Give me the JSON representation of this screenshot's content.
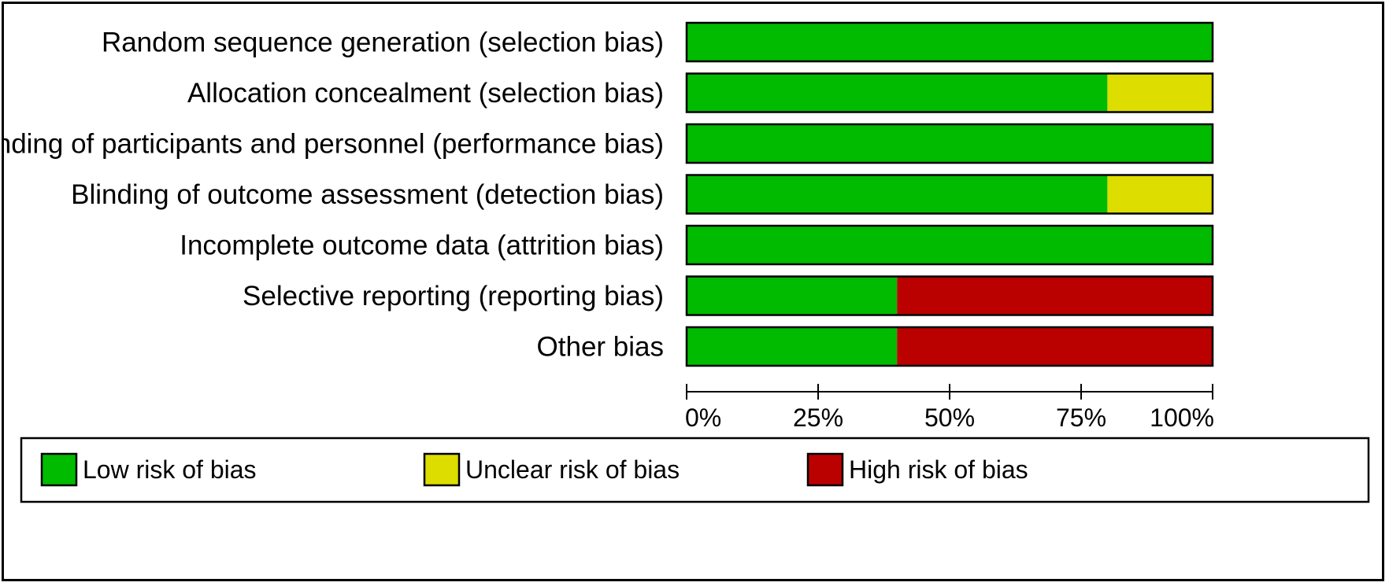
{
  "chart_data": {
    "type": "bar",
    "orientation": "horizontal",
    "stacked": true,
    "categories": [
      "Random sequence generation (selection bias)",
      "Allocation concealment (selection bias)",
      "Blinding of participants and personnel (performance bias)",
      "Blinding of outcome assessment (detection bias)",
      "Incomplete outcome data (attrition bias)",
      "Selective reporting (reporting bias)",
      "Other bias"
    ],
    "series": [
      {
        "name": "Low risk of bias",
        "color": "#00bb00",
        "values": [
          100,
          80,
          100,
          80,
          100,
          40,
          40
        ]
      },
      {
        "name": "Unclear risk of bias",
        "color": "#dddd00",
        "values": [
          0,
          20,
          0,
          20,
          0,
          0,
          0
        ]
      },
      {
        "name": "High risk of bias",
        "color": "#bb0000",
        "values": [
          0,
          0,
          0,
          0,
          0,
          60,
          60
        ]
      }
    ],
    "xlim": [
      0,
      100
    ],
    "xticks": [
      0,
      25,
      50,
      75,
      100
    ],
    "xtick_labels": [
      "0%",
      "25%",
      "50%",
      "75%",
      "100%"
    ],
    "grid": false,
    "legend_position": "bottom"
  }
}
